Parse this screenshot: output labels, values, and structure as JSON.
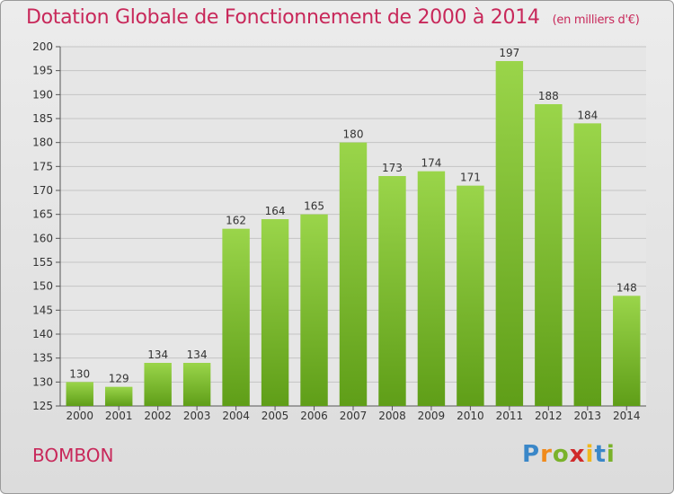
{
  "chart_data": {
    "type": "bar",
    "title": "Dotation Globale de Fonctionnement de 2000 à 2014",
    "subtitle": "(en milliers d'€)",
    "categories": [
      "2000",
      "2001",
      "2002",
      "2003",
      "2004",
      "2005",
      "2006",
      "2007",
      "2008",
      "2009",
      "2010",
      "2011",
      "2012",
      "2013",
      "2014"
    ],
    "values": [
      130,
      129,
      134,
      134,
      162,
      164,
      165,
      180,
      173,
      174,
      171,
      197,
      188,
      184,
      148
    ],
    "ylim": [
      125,
      200
    ],
    "yticks": [
      125,
      130,
      135,
      140,
      145,
      150,
      155,
      160,
      165,
      170,
      175,
      180,
      185,
      190,
      195,
      200
    ],
    "grid": true,
    "bar_color": "#7cc12c",
    "bar_color_light": "#9ad54a",
    "bar_color_dark": "#5f9e18"
  },
  "commune": "BOMBON",
  "logo": {
    "letters": [
      "P",
      "r",
      "o",
      "x",
      "i",
      "t",
      "i"
    ],
    "colors": [
      "#3a87c8",
      "#f08a1c",
      "#7ab22a",
      "#d02a2a",
      "#f0b81c",
      "#3a87c8",
      "#7ab22a"
    ]
  }
}
